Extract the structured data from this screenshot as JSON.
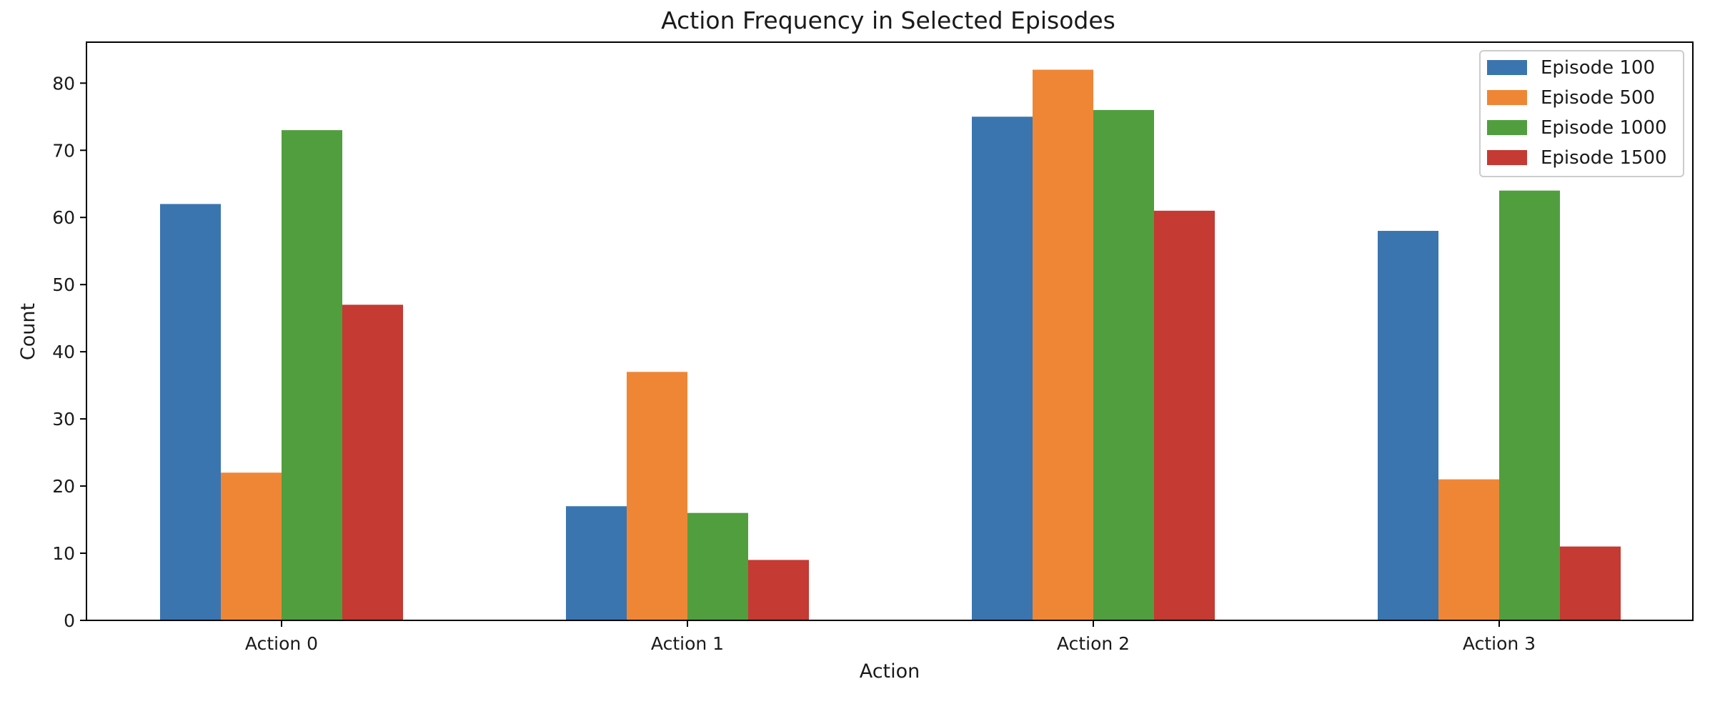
{
  "chart_data": {
    "type": "bar",
    "title": "Action Frequency in Selected Episodes",
    "xlabel": "Action",
    "ylabel": "Count",
    "categories": [
      "Action 0",
      "Action 1",
      "Action 2",
      "Action 3"
    ],
    "series": [
      {
        "name": "Episode 100",
        "color": "#3a75af",
        "values": [
          62,
          17,
          75,
          58
        ]
      },
      {
        "name": "Episode 500",
        "color": "#ef8636",
        "values": [
          22,
          37,
          82,
          21
        ]
      },
      {
        "name": "Episode 1000",
        "color": "#519e3e",
        "values": [
          73,
          16,
          76,
          64
        ]
      },
      {
        "name": "Episode 1500",
        "color": "#c53a32",
        "values": [
          47,
          9,
          61,
          11
        ]
      }
    ],
    "ylim": [
      0,
      86.1
    ],
    "yticks": [
      0,
      10,
      20,
      30,
      40,
      50,
      60,
      70,
      80
    ],
    "grid": false,
    "legend_position": "top-right"
  }
}
